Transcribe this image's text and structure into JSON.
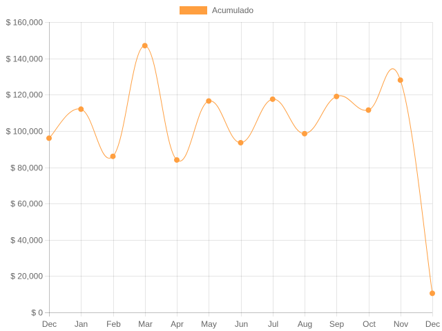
{
  "chart_data": {
    "type": "line",
    "title": "",
    "xlabel": "",
    "ylabel": "",
    "categories": [
      "Dec",
      "Jan",
      "Feb",
      "Mar",
      "Apr",
      "May",
      "Jun",
      "Jul",
      "Aug",
      "Sep",
      "Oct",
      "Nov",
      "Dec"
    ],
    "series": [
      {
        "name": "Acumulado",
        "color": "#ff9f40",
        "values": [
          96000,
          112000,
          86000,
          147000,
          84000,
          116500,
          93500,
          117500,
          98500,
          119000,
          111500,
          128000,
          10500
        ]
      }
    ],
    "ylim": [
      0,
      160000
    ],
    "y_ticks": [
      "$ 0",
      "$ 20,000",
      "$ 40,000",
      "$ 60,000",
      "$ 80,000",
      "$ 100,000",
      "$ 120,000",
      "$ 140,000",
      "$ 160,000"
    ],
    "y_tick_values": [
      0,
      20000,
      40000,
      60000,
      80000,
      100000,
      120000,
      140000,
      160000
    ],
    "grid": true,
    "legend": "top",
    "smooth": true
  }
}
